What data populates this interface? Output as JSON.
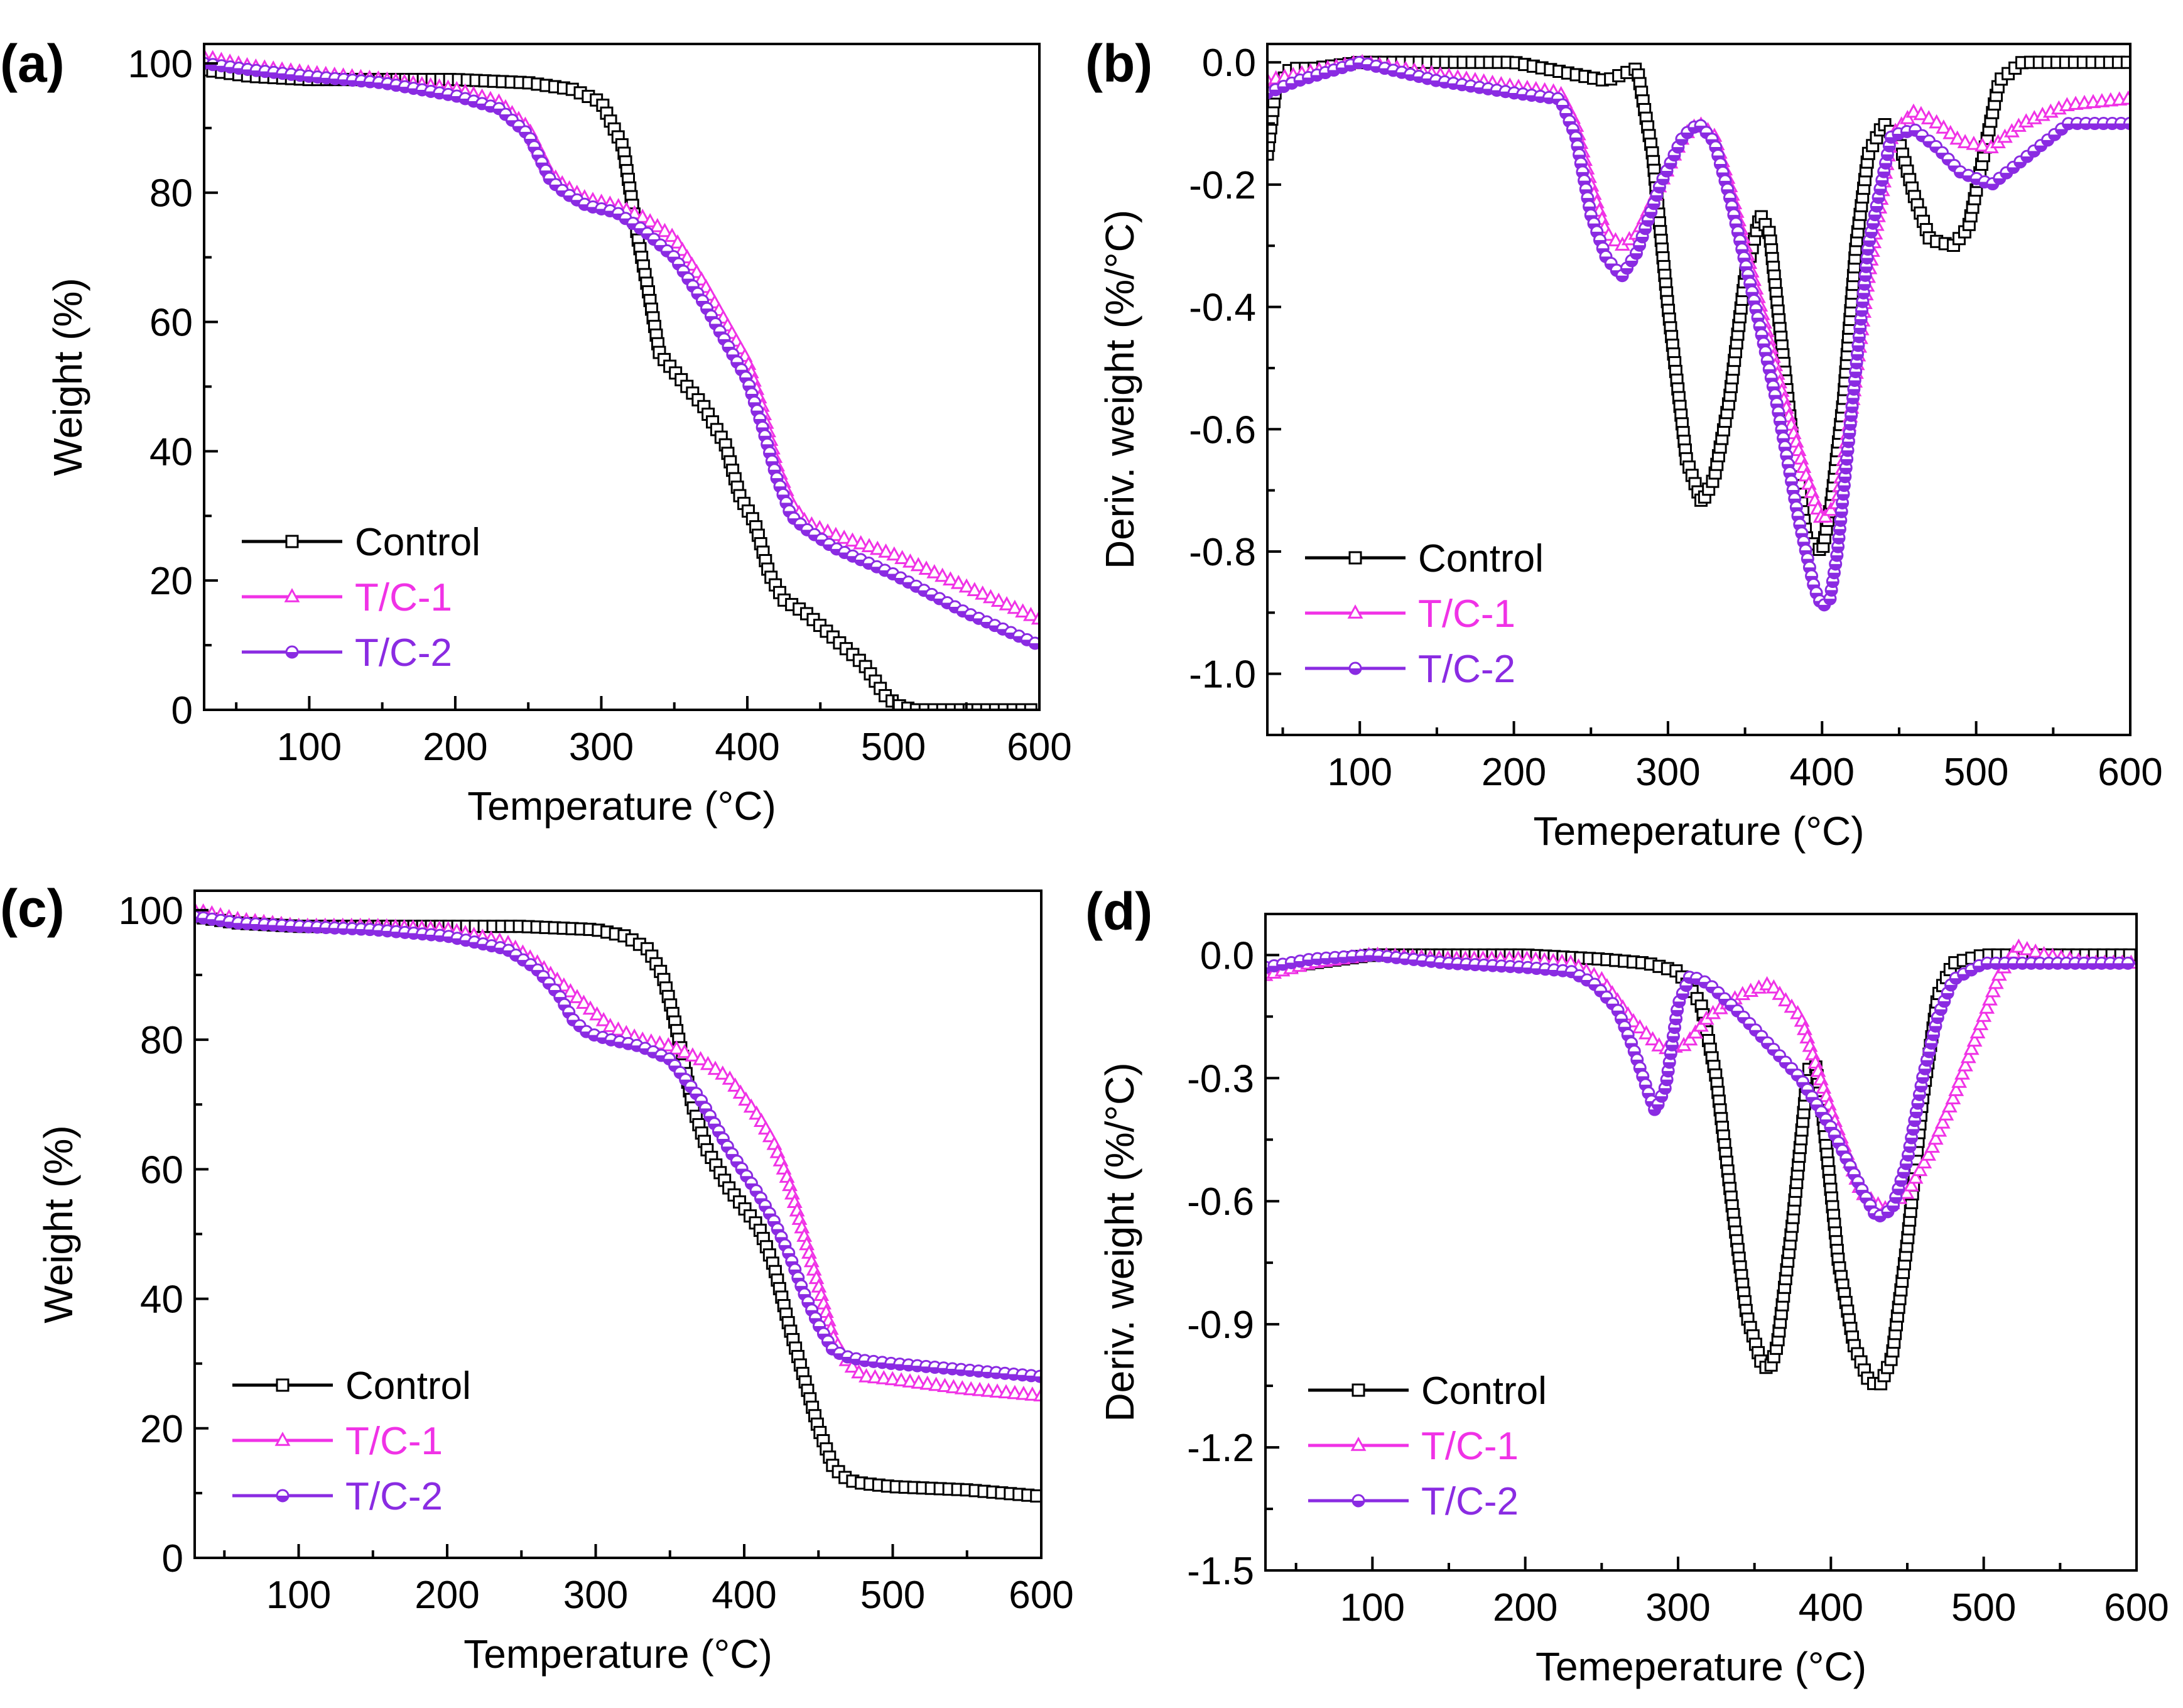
{
  "colors": {
    "Control": "#000000",
    "T/C-1": "#f032e6",
    "T/C-2": "#8a2be2"
  },
  "markers": {
    "Control": "square",
    "T/C-1": "triangle",
    "T/C-2": "circle"
  },
  "chart_data": [
    {
      "panel": "(a)",
      "type": "line",
      "xlabel": "Temperature (°C)",
      "ylabel": "Weight (%)",
      "xlim": [
        28,
        600
      ],
      "ylim": [
        0,
        103
      ],
      "xticks": [
        100,
        200,
        300,
        400,
        500,
        600
      ],
      "yticks": [
        0,
        20,
        40,
        60,
        80,
        100
      ],
      "legend_position": "bottom-left",
      "series": [
        {
          "name": "Control",
          "x": [
            28,
            60,
            100,
            150,
            200,
            250,
            280,
            300,
            315,
            325,
            332,
            340,
            355,
            370,
            385,
            395,
            405,
            410,
            415,
            425,
            440,
            460,
            480,
            495,
            505,
            515,
            600
          ],
          "y": [
            99,
            98,
            97.5,
            97.5,
            97.5,
            97,
            96,
            94,
            87,
            73,
            65,
            55,
            51,
            47,
            41,
            33,
            29,
            25,
            21,
            17,
            15,
            11,
            7,
            2,
            0.5,
            0,
            0
          ]
        },
        {
          "name": "T/C-1",
          "x": [
            28,
            60,
            100,
            150,
            200,
            230,
            250,
            265,
            275,
            290,
            310,
            330,
            350,
            370,
            385,
            400,
            410,
            420,
            430,
            440,
            460,
            500,
            550,
            600
          ],
          "y": [
            101,
            99.5,
            98.5,
            97.5,
            96,
            94,
            90,
            83,
            81,
            79,
            78,
            76,
            73,
            66,
            60,
            54,
            47,
            38,
            32,
            29,
            27,
            24,
            19,
            14
          ]
        },
        {
          "name": "T/C-2",
          "x": [
            28,
            60,
            100,
            150,
            200,
            230,
            250,
            265,
            275,
            290,
            310,
            330,
            350,
            370,
            385,
            400,
            410,
            420,
            430,
            440,
            460,
            500,
            550,
            600
          ],
          "y": [
            100,
            99,
            98,
            97,
            95,
            93,
            89,
            82,
            80,
            78,
            77,
            74,
            70,
            63,
            57,
            51,
            44,
            36,
            30,
            28,
            25,
            21,
            15,
            10
          ]
        }
      ]
    },
    {
      "panel": "(b)",
      "type": "line",
      "xlabel": "Temeperature (°C)",
      "ylabel": "Deriv. weight (%/°C)",
      "xlim": [
        40,
        600
      ],
      "ylim": [
        -1.1,
        0.03
      ],
      "xticks": [
        100,
        200,
        300,
        400,
        500,
        600
      ],
      "yticks": [
        0.0,
        -0.2,
        -0.4,
        -0.6,
        -0.8,
        -1.0
      ],
      "ytick_labels": [
        "0.0",
        "-0.2",
        "-0.4",
        "-0.6",
        "-0.8",
        "-1.0"
      ],
      "legend_position": "bottom-left",
      "series": [
        {
          "name": "Control",
          "x": [
            40,
            45,
            55,
            70,
            100,
            150,
            200,
            240,
            260,
            270,
            280,
            290,
            300,
            312,
            322,
            330,
            340,
            350,
            360,
            366,
            372,
            380,
            390,
            400,
            406,
            414,
            422,
            430,
            440,
            450,
            460,
            470,
            485,
            495,
            505,
            515,
            530,
            560,
            600
          ],
          "y": [
            -0.15,
            -0.05,
            -0.01,
            -0.01,
            0,
            0,
            0,
            -0.02,
            -0.03,
            -0.02,
            -0.01,
            -0.15,
            -0.4,
            -0.65,
            -0.72,
            -0.68,
            -0.55,
            -0.35,
            -0.25,
            -0.28,
            -0.42,
            -0.6,
            -0.78,
            -0.8,
            -0.72,
            -0.55,
            -0.3,
            -0.15,
            -0.1,
            -0.13,
            -0.22,
            -0.29,
            -0.3,
            -0.27,
            -0.15,
            -0.03,
            0,
            0,
            0
          ]
        },
        {
          "name": "T/C-1",
          "x": [
            40,
            60,
            100,
            150,
            200,
            230,
            240,
            250,
            260,
            270,
            280,
            295,
            310,
            320,
            330,
            340,
            350,
            360,
            375,
            390,
            400,
            410,
            420,
            430,
            445,
            460,
            475,
            490,
            510,
            530,
            560,
            600
          ],
          "y": [
            -0.03,
            -0.02,
            0,
            -0.02,
            -0.04,
            -0.05,
            -0.1,
            -0.2,
            -0.28,
            -0.3,
            -0.28,
            -0.2,
            -0.12,
            -0.1,
            -0.12,
            -0.2,
            -0.3,
            -0.4,
            -0.55,
            -0.68,
            -0.75,
            -0.72,
            -0.55,
            -0.35,
            -0.12,
            -0.08,
            -0.1,
            -0.13,
            -0.14,
            -0.1,
            -0.07,
            -0.06
          ]
        },
        {
          "name": "T/C-2",
          "x": [
            40,
            60,
            100,
            150,
            200,
            230,
            240,
            250,
            260,
            270,
            280,
            295,
            310,
            320,
            330,
            340,
            355,
            370,
            385,
            395,
            400,
            405,
            410,
            420,
            430,
            445,
            460,
            475,
            490,
            510,
            530,
            560,
            600
          ],
          "y": [
            -0.05,
            -0.03,
            0,
            -0.03,
            -0.05,
            -0.06,
            -0.12,
            -0.25,
            -0.32,
            -0.35,
            -0.31,
            -0.2,
            -0.12,
            -0.1,
            -0.13,
            -0.22,
            -0.38,
            -0.55,
            -0.75,
            -0.86,
            -0.89,
            -0.88,
            -0.8,
            -0.55,
            -0.3,
            -0.12,
            -0.11,
            -0.14,
            -0.18,
            -0.2,
            -0.16,
            -0.1,
            -0.1
          ]
        }
      ]
    },
    {
      "panel": "(c)",
      "type": "line",
      "xlabel": "Temperature (°C)",
      "ylabel": "Weight (%)",
      "xlim": [
        30,
        600
      ],
      "ylim": [
        0,
        103
      ],
      "xticks": [
        100,
        200,
        300,
        400,
        500,
        600
      ],
      "yticks": [
        0,
        20,
        40,
        60,
        80,
        100
      ],
      "legend_position": "bottom-left",
      "series": [
        {
          "name": "Control",
          "x": [
            30,
            60,
            100,
            150,
            200,
            250,
            300,
            320,
            335,
            345,
            352,
            358,
            365,
            375,
            390,
            410,
            420,
            430,
            440,
            450,
            460,
            470,
            480,
            500,
            550,
            600
          ],
          "y": [
            99,
            98,
            97.5,
            97.5,
            97.5,
            97.5,
            97,
            96,
            94,
            90,
            84,
            78,
            70,
            63,
            57,
            51,
            45,
            36,
            28,
            20,
            14,
            12,
            11.5,
            11,
            10.5,
            9.5
          ]
        },
        {
          "name": "T/C-1",
          "x": [
            30,
            60,
            100,
            150,
            200,
            240,
            260,
            280,
            290,
            300,
            310,
            320,
            330,
            350,
            370,
            390,
            410,
            420,
            430,
            440,
            450,
            460,
            470,
            480,
            500,
            550,
            600
          ],
          "y": [
            100,
            98.5,
            97.5,
            97.5,
            97,
            95,
            92,
            88,
            86,
            84,
            82,
            81,
            80,
            79,
            77,
            74,
            68,
            64,
            58,
            50,
            42,
            34,
            30,
            28,
            27.5,
            26,
            25
          ]
        },
        {
          "name": "T/C-2",
          "x": [
            30,
            60,
            100,
            150,
            200,
            240,
            260,
            275,
            285,
            295,
            310,
            330,
            350,
            370,
            390,
            410,
            420,
            430,
            440,
            450,
            460,
            470,
            480,
            500,
            550,
            600
          ],
          "y": [
            99,
            98,
            97.5,
            97,
            96,
            94,
            91,
            87,
            83,
            81,
            80,
            79,
            77,
            71,
            63,
            56,
            52,
            47,
            41,
            36,
            32,
            31,
            30.5,
            30,
            29,
            28
          ]
        }
      ]
    },
    {
      "panel": "(d)",
      "type": "line",
      "xlabel": "Temeperature (°C)",
      "ylabel": "Deriv. weight (%/°C)",
      "xlim": [
        30,
        600
      ],
      "ylim": [
        -1.5,
        0.1
      ],
      "xticks": [
        100,
        200,
        300,
        400,
        500,
        600
      ],
      "yticks": [
        0.0,
        -0.3,
        -0.6,
        -0.9,
        -1.2,
        -1.5
      ],
      "ytick_labels": [
        "0.0",
        "-0.3",
        "-0.6",
        "-0.9",
        "-1.2",
        "-1.5"
      ],
      "legend_position": "bottom-left",
      "series": [
        {
          "name": "Control",
          "x": [
            30,
            60,
            100,
            150,
            200,
            250,
            280,
            300,
            315,
            325,
            335,
            345,
            355,
            360,
            365,
            375,
            385,
            390,
            395,
            405,
            415,
            425,
            432,
            440,
            450,
            460,
            470,
            480,
            500,
            550,
            600
          ],
          "y": [
            -0.04,
            -0.02,
            0,
            0,
            0,
            -0.01,
            -0.02,
            -0.04,
            -0.12,
            -0.3,
            -0.6,
            -0.88,
            -1.0,
            -1.01,
            -0.95,
            -0.65,
            -0.28,
            -0.27,
            -0.4,
            -0.75,
            -0.95,
            -1.04,
            -1.05,
            -0.98,
            -0.7,
            -0.35,
            -0.1,
            -0.02,
            0,
            0,
            0
          ]
        },
        {
          "name": "T/C-1",
          "x": [
            30,
            60,
            100,
            150,
            200,
            230,
            250,
            270,
            290,
            305,
            320,
            340,
            360,
            380,
            400,
            420,
            435,
            450,
            465,
            480,
            495,
            510,
            522,
            540,
            570,
            600
          ],
          "y": [
            -0.05,
            -0.02,
            0,
            -0.01,
            -0.01,
            -0.02,
            -0.06,
            -0.16,
            -0.23,
            -0.22,
            -0.15,
            -0.1,
            -0.07,
            -0.15,
            -0.38,
            -0.58,
            -0.62,
            -0.58,
            -0.48,
            -0.35,
            -0.2,
            -0.05,
            0.02,
            0.0,
            -0.02,
            -0.02
          ]
        },
        {
          "name": "T/C-2",
          "x": [
            30,
            60,
            100,
            150,
            200,
            230,
            245,
            260,
            270,
            280,
            285,
            292,
            300,
            308,
            320,
            340,
            360,
            380,
            400,
            420,
            430,
            440,
            450,
            460,
            470,
            480,
            500,
            550,
            600
          ],
          "y": [
            -0.03,
            -0.01,
            0,
            -0.02,
            -0.03,
            -0.04,
            -0.07,
            -0.13,
            -0.22,
            -0.33,
            -0.38,
            -0.32,
            -0.12,
            -0.05,
            -0.07,
            -0.14,
            -0.22,
            -0.3,
            -0.42,
            -0.57,
            -0.64,
            -0.62,
            -0.5,
            -0.3,
            -0.15,
            -0.06,
            -0.02,
            -0.02,
            -0.02
          ]
        }
      ]
    }
  ]
}
